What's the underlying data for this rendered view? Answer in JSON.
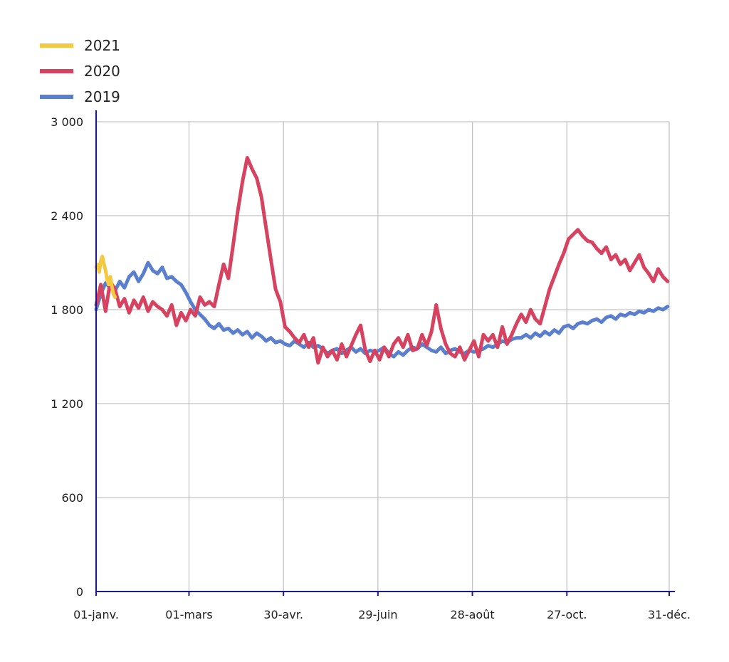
{
  "chart_data": {
    "type": "line",
    "title": "",
    "xlabel": "",
    "ylabel": "",
    "ylim": [
      0,
      3000
    ],
    "xlim": [
      1,
      365
    ],
    "x_unit": "day of year",
    "y_ticks": [
      {
        "value": 0,
        "label": "0"
      },
      {
        "value": 600,
        "label": "600"
      },
      {
        "value": 1200,
        "label": "1 200"
      },
      {
        "value": 1800,
        "label": "1 800"
      },
      {
        "value": 2400,
        "label": "2 400"
      },
      {
        "value": 3000,
        "label": "3 000"
      }
    ],
    "x_ticks": [
      {
        "day": 1,
        "label": "01-janv."
      },
      {
        "day": 60,
        "label": "01-mars"
      },
      {
        "day": 120,
        "label": "30-avr."
      },
      {
        "day": 180,
        "label": "29-juin"
      },
      {
        "day": 240,
        "label": "28-août"
      },
      {
        "day": 300,
        "label": "27-oct."
      },
      {
        "day": 365,
        "label": "31-déc."
      }
    ],
    "grid": true,
    "legend_position": "top-left",
    "series": [
      {
        "name": "2021",
        "color": "#f5c842",
        "points": [
          [
            1,
            2070
          ],
          [
            2,
            2090
          ],
          [
            3,
            2040
          ],
          [
            4,
            2110
          ],
          [
            5,
            2140
          ],
          [
            6,
            2090
          ],
          [
            7,
            2050
          ],
          [
            8,
            1990
          ],
          [
            9,
            1960
          ],
          [
            10,
            2010
          ],
          [
            11,
            1950
          ],
          [
            12,
            1900
          ],
          [
            13,
            1880
          ]
        ]
      },
      {
        "name": "2020",
        "color": "#d6425f",
        "points": [
          [
            1,
            1830
          ],
          [
            4,
            1960
          ],
          [
            7,
            1790
          ],
          [
            10,
            1980
          ],
          [
            13,
            1930
          ],
          [
            16,
            1820
          ],
          [
            19,
            1870
          ],
          [
            22,
            1780
          ],
          [
            25,
            1860
          ],
          [
            28,
            1810
          ],
          [
            31,
            1880
          ],
          [
            34,
            1790
          ],
          [
            37,
            1850
          ],
          [
            40,
            1820
          ],
          [
            43,
            1800
          ],
          [
            46,
            1760
          ],
          [
            49,
            1830
          ],
          [
            52,
            1700
          ],
          [
            55,
            1780
          ],
          [
            58,
            1730
          ],
          [
            61,
            1800
          ],
          [
            64,
            1760
          ],
          [
            67,
            1880
          ],
          [
            70,
            1830
          ],
          [
            73,
            1850
          ],
          [
            76,
            1820
          ],
          [
            79,
            1960
          ],
          [
            82,
            2090
          ],
          [
            85,
            2000
          ],
          [
            88,
            2210
          ],
          [
            91,
            2430
          ],
          [
            94,
            2620
          ],
          [
            97,
            2770
          ],
          [
            100,
            2700
          ],
          [
            103,
            2640
          ],
          [
            106,
            2520
          ],
          [
            109,
            2320
          ],
          [
            112,
            2120
          ],
          [
            115,
            1930
          ],
          [
            118,
            1850
          ],
          [
            121,
            1690
          ],
          [
            124,
            1660
          ],
          [
            127,
            1620
          ],
          [
            130,
            1590
          ],
          [
            133,
            1640
          ],
          [
            136,
            1560
          ],
          [
            139,
            1620
          ],
          [
            142,
            1460
          ],
          [
            145,
            1560
          ],
          [
            148,
            1500
          ],
          [
            151,
            1540
          ],
          [
            154,
            1480
          ],
          [
            157,
            1580
          ],
          [
            160,
            1500
          ],
          [
            163,
            1570
          ],
          [
            166,
            1640
          ],
          [
            169,
            1700
          ],
          [
            172,
            1540
          ],
          [
            175,
            1470
          ],
          [
            178,
            1540
          ],
          [
            181,
            1480
          ],
          [
            184,
            1560
          ],
          [
            187,
            1500
          ],
          [
            190,
            1580
          ],
          [
            193,
            1620
          ],
          [
            196,
            1560
          ],
          [
            199,
            1640
          ],
          [
            202,
            1540
          ],
          [
            205,
            1550
          ],
          [
            208,
            1640
          ],
          [
            211,
            1570
          ],
          [
            214,
            1660
          ],
          [
            217,
            1830
          ],
          [
            220,
            1680
          ],
          [
            223,
            1580
          ],
          [
            226,
            1520
          ],
          [
            229,
            1500
          ],
          [
            232,
            1560
          ],
          [
            235,
            1480
          ],
          [
            238,
            1540
          ],
          [
            241,
            1600
          ],
          [
            244,
            1500
          ],
          [
            247,
            1640
          ],
          [
            250,
            1600
          ],
          [
            253,
            1640
          ],
          [
            256,
            1560
          ],
          [
            259,
            1690
          ],
          [
            262,
            1580
          ],
          [
            265,
            1640
          ],
          [
            268,
            1710
          ],
          [
            271,
            1770
          ],
          [
            274,
            1720
          ],
          [
            277,
            1800
          ],
          [
            280,
            1740
          ],
          [
            283,
            1710
          ],
          [
            286,
            1820
          ],
          [
            289,
            1930
          ],
          [
            292,
            2010
          ],
          [
            295,
            2090
          ],
          [
            298,
            2160
          ],
          [
            301,
            2250
          ],
          [
            304,
            2280
          ],
          [
            307,
            2310
          ],
          [
            310,
            2270
          ],
          [
            313,
            2240
          ],
          [
            316,
            2230
          ],
          [
            319,
            2190
          ],
          [
            322,
            2160
          ],
          [
            325,
            2200
          ],
          [
            328,
            2120
          ],
          [
            331,
            2150
          ],
          [
            334,
            2090
          ],
          [
            337,
            2120
          ],
          [
            340,
            2050
          ],
          [
            343,
            2100
          ],
          [
            346,
            2150
          ],
          [
            349,
            2070
          ],
          [
            352,
            2030
          ],
          [
            355,
            1980
          ],
          [
            358,
            2060
          ],
          [
            361,
            2010
          ],
          [
            364,
            1980
          ]
        ]
      },
      {
        "name": "2019",
        "color": "#5b7fcf",
        "points": [
          [
            1,
            1800
          ],
          [
            4,
            1900
          ],
          [
            7,
            1970
          ],
          [
            10,
            1940
          ],
          [
            13,
            1920
          ],
          [
            16,
            1980
          ],
          [
            19,
            1940
          ],
          [
            22,
            2010
          ],
          [
            25,
            2040
          ],
          [
            28,
            1980
          ],
          [
            31,
            2030
          ],
          [
            34,
            2100
          ],
          [
            37,
            2050
          ],
          [
            40,
            2030
          ],
          [
            43,
            2070
          ],
          [
            46,
            2000
          ],
          [
            49,
            2010
          ],
          [
            52,
            1980
          ],
          [
            55,
            1960
          ],
          [
            58,
            1910
          ],
          [
            61,
            1850
          ],
          [
            64,
            1800
          ],
          [
            67,
            1770
          ],
          [
            70,
            1740
          ],
          [
            73,
            1700
          ],
          [
            76,
            1680
          ],
          [
            79,
            1710
          ],
          [
            82,
            1670
          ],
          [
            85,
            1680
          ],
          [
            88,
            1650
          ],
          [
            91,
            1670
          ],
          [
            94,
            1640
          ],
          [
            97,
            1660
          ],
          [
            100,
            1620
          ],
          [
            103,
            1650
          ],
          [
            106,
            1630
          ],
          [
            109,
            1600
          ],
          [
            112,
            1620
          ],
          [
            115,
            1590
          ],
          [
            118,
            1600
          ],
          [
            121,
            1580
          ],
          [
            124,
            1570
          ],
          [
            127,
            1600
          ],
          [
            130,
            1580
          ],
          [
            133,
            1560
          ],
          [
            136,
            1590
          ],
          [
            139,
            1560
          ],
          [
            142,
            1570
          ],
          [
            145,
            1550
          ],
          [
            148,
            1520
          ],
          [
            151,
            1540
          ],
          [
            154,
            1550
          ],
          [
            157,
            1520
          ],
          [
            160,
            1540
          ],
          [
            163,
            1560
          ],
          [
            166,
            1530
          ],
          [
            169,
            1550
          ],
          [
            172,
            1520
          ],
          [
            175,
            1540
          ],
          [
            178,
            1530
          ],
          [
            181,
            1540
          ],
          [
            184,
            1560
          ],
          [
            187,
            1520
          ],
          [
            190,
            1500
          ],
          [
            193,
            1530
          ],
          [
            196,
            1510
          ],
          [
            199,
            1540
          ],
          [
            202,
            1560
          ],
          [
            205,
            1550
          ],
          [
            208,
            1580
          ],
          [
            211,
            1560
          ],
          [
            214,
            1540
          ],
          [
            217,
            1530
          ],
          [
            220,
            1560
          ],
          [
            223,
            1520
          ],
          [
            226,
            1540
          ],
          [
            229,
            1550
          ],
          [
            232,
            1530
          ],
          [
            235,
            1520
          ],
          [
            238,
            1540
          ],
          [
            241,
            1530
          ],
          [
            244,
            1540
          ],
          [
            247,
            1550
          ],
          [
            250,
            1570
          ],
          [
            253,
            1560
          ],
          [
            256,
            1580
          ],
          [
            259,
            1600
          ],
          [
            262,
            1590
          ],
          [
            265,
            1610
          ],
          [
            268,
            1620
          ],
          [
            271,
            1620
          ],
          [
            274,
            1640
          ],
          [
            277,
            1620
          ],
          [
            280,
            1650
          ],
          [
            283,
            1630
          ],
          [
            286,
            1660
          ],
          [
            289,
            1640
          ],
          [
            292,
            1670
          ],
          [
            295,
            1650
          ],
          [
            298,
            1690
          ],
          [
            301,
            1700
          ],
          [
            304,
            1680
          ],
          [
            307,
            1710
          ],
          [
            310,
            1720
          ],
          [
            313,
            1710
          ],
          [
            316,
            1730
          ],
          [
            319,
            1740
          ],
          [
            322,
            1720
          ],
          [
            325,
            1750
          ],
          [
            328,
            1760
          ],
          [
            331,
            1740
          ],
          [
            334,
            1770
          ],
          [
            337,
            1760
          ],
          [
            340,
            1780
          ],
          [
            343,
            1770
          ],
          [
            346,
            1790
          ],
          [
            349,
            1780
          ],
          [
            352,
            1800
          ],
          [
            355,
            1790
          ],
          [
            358,
            1810
          ],
          [
            361,
            1800
          ],
          [
            364,
            1820
          ]
        ]
      }
    ]
  }
}
